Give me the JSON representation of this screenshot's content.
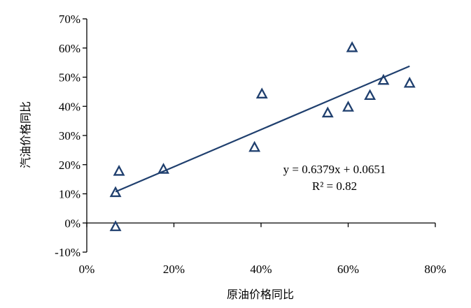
{
  "chart_data": {
    "type": "scatter",
    "xlabel": "原油价格同比",
    "ylabel": "汽油价格同比",
    "xlim": [
      0,
      0.8
    ],
    "ylim": [
      -0.1,
      0.7
    ],
    "x_ticks": [
      0,
      0.2,
      0.4,
      0.6,
      0.8
    ],
    "y_ticks": [
      -0.1,
      0,
      0.1,
      0.2,
      0.3,
      0.4,
      0.5,
      0.6,
      0.7
    ],
    "x_tick_labels": [
      "0%",
      "20%",
      "40%",
      "60%",
      "80%"
    ],
    "y_tick_labels": [
      "-10%",
      "0%",
      "10%",
      "20%",
      "30%",
      "40%",
      "50%",
      "60%",
      "70%"
    ],
    "grid": false,
    "marker": "triangle-open",
    "series": [
      {
        "points": [
          {
            "x": 0.066,
            "y": -0.012
          },
          {
            "x": 0.066,
            "y": 0.105
          },
          {
            "x": 0.074,
            "y": 0.178
          },
          {
            "x": 0.176,
            "y": 0.185
          },
          {
            "x": 0.385,
            "y": 0.26
          },
          {
            "x": 0.402,
            "y": 0.443
          },
          {
            "x": 0.553,
            "y": 0.378
          },
          {
            "x": 0.6,
            "y": 0.398
          },
          {
            "x": 0.609,
            "y": 0.602
          },
          {
            "x": 0.65,
            "y": 0.438
          },
          {
            "x": 0.681,
            "y": 0.49
          },
          {
            "x": 0.741,
            "y": 0.48
          }
        ]
      }
    ],
    "trendline": {
      "slope": 0.6379,
      "intercept": 0.0651,
      "x_range": [
        0.066,
        0.741
      ],
      "equation": "y = 0.6379x + 0.0651",
      "r2": "R² = 0.82"
    },
    "colors": {
      "marker": "#1f3f6e",
      "trendline": "#1f3f6e",
      "axis": "#000000"
    }
  }
}
